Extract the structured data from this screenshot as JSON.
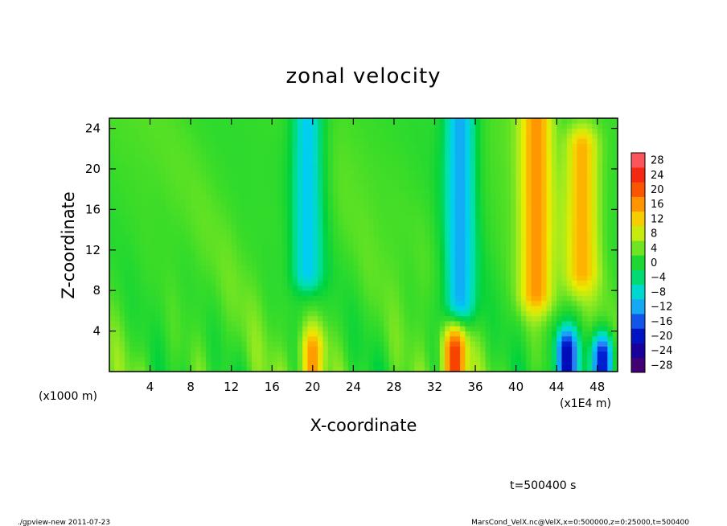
{
  "chart_data": {
    "type": "heatmap",
    "title": "zonal velocity",
    "xlabel": "X-coordinate",
    "ylabel": "Z-coordinate",
    "x_unit_note": "(x1000 m)",
    "x_unit_note_right": "(x1E4 m)",
    "xlim": [
      0,
      50
    ],
    "ylim": [
      0,
      25
    ],
    "x_ticks": [
      4,
      8,
      12,
      16,
      20,
      24,
      28,
      32,
      36,
      40,
      44,
      48
    ],
    "y_ticks": [
      4,
      8,
      12,
      16,
      20,
      24
    ],
    "colorbar": {
      "ticks": [
        28,
        24,
        20,
        16,
        12,
        8,
        4,
        0,
        -4,
        -8,
        -12,
        -16,
        -20,
        -24,
        -28
      ],
      "range": [
        -30,
        30
      ]
    },
    "features": [
      {
        "x": 19.5,
        "z_from": 10,
        "z_to": 25,
        "v": -10
      },
      {
        "x": 34.5,
        "z_from": 7,
        "z_to": 25,
        "v": -12
      },
      {
        "x": 42,
        "z_from": 8,
        "z_to": 25,
        "v": 16
      },
      {
        "x": 46.5,
        "z_from": 10,
        "z_to": 22,
        "v": 14
      },
      {
        "x": 34,
        "z_from": 0,
        "z_to": 2,
        "v": 22
      },
      {
        "x": 20,
        "z_from": 0,
        "z_to": 2,
        "v": 16
      },
      {
        "x": 45,
        "z_from": 0,
        "z_to": 2,
        "v": -22
      },
      {
        "x": 48.5,
        "z_from": 0,
        "z_to": 1.5,
        "v": -20
      }
    ],
    "time_label": "t=500400 s"
  },
  "footer": {
    "left": "./gpview-new   2011-07-23",
    "right": "MarsCond_VelX.nc@VelX,x=0:500000,z=0:25000,t=500400"
  },
  "colors": {
    "background": "#ffffff",
    "axis": "#000000"
  }
}
